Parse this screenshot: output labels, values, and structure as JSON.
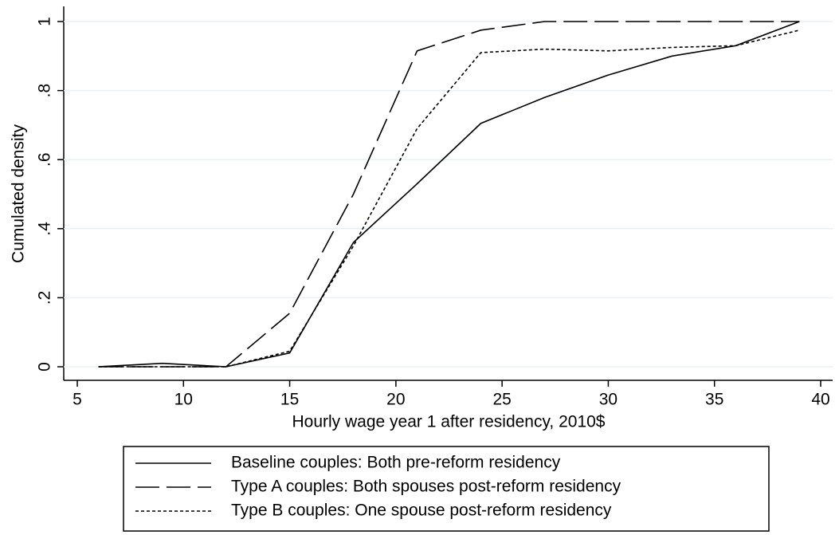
{
  "chart_data": {
    "type": "line",
    "x_label": "Hourly wage year 1 after residency, 2010$",
    "y_label": "Cumulated density",
    "x": [
      6,
      9,
      12,
      15,
      18,
      21,
      24,
      27,
      30,
      33,
      36,
      39
    ],
    "series": [
      {
        "name": "Baseline couples: Both pre-reform residency",
        "color": "#000000",
        "dash": "none",
        "values": [
          0,
          0.01,
          0,
          0.04,
          0.36,
          0.53,
          0.705,
          0.78,
          0.845,
          0.9,
          0.93,
          1.0
        ]
      },
      {
        "name": "Type A couples: Both spouses post-reform residency",
        "color": "#000000",
        "dash": "30,9",
        "values": [
          0,
          0,
          0,
          0.155,
          0.5,
          0.915,
          0.975,
          1,
          1,
          1,
          1,
          1
        ]
      },
      {
        "name": "Type B couples: One spouse post-reform residency",
        "color": "#000000",
        "dash": "4,3",
        "values": [
          0,
          0,
          0,
          0.045,
          0.35,
          0.69,
          0.91,
          0.92,
          0.915,
          0.925,
          0.93,
          0.975
        ]
      }
    ],
    "xlim": [
      5,
      40
    ],
    "xticks": [
      5,
      10,
      15,
      20,
      25,
      30,
      35,
      40
    ],
    "ylim": [
      0,
      1
    ],
    "yticks": [
      0,
      {
        "value": 0.2,
        "label": ".2"
      },
      {
        "value": 0.4,
        "label": ".4"
      },
      {
        "value": 0.6,
        "label": ".6"
      },
      {
        "value": 0.8,
        "label": ".8"
      },
      1
    ],
    "grid": true,
    "legend": "bottom"
  }
}
